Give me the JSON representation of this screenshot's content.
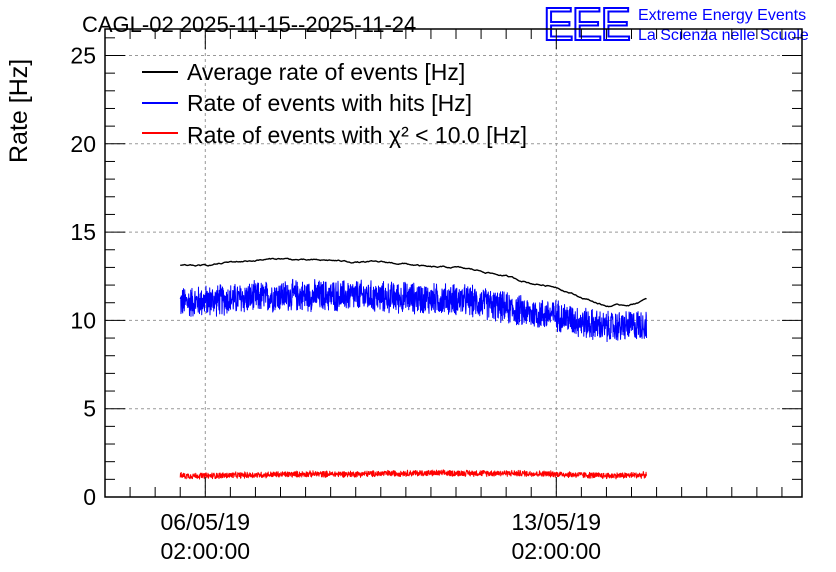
{
  "header": {
    "title": "CAGL-02 2025-11-15--2025-11-24",
    "logo_letters": "EEE",
    "logo_line1": "Extreme Energy Events",
    "logo_line2": "La Scienza nelle Scuole"
  },
  "colors": {
    "average": "#000000",
    "hits": "#0000ff",
    "chi2": "#ff0000",
    "grid": "#999999",
    "logo": "#0000ff"
  },
  "chart_data": {
    "type": "line",
    "title": "CAGL-02 2025-11-15--2025-11-24",
    "ylabel": "Rate [Hz]",
    "xlabel": "",
    "ylim": [
      0,
      26.5
    ],
    "yticks": [
      0,
      5,
      10,
      15,
      20,
      25
    ],
    "xlim_days": [
      -2.0,
      11.9
    ],
    "grid": true,
    "legend_position": "top-left",
    "x_ticks": [
      {
        "day": 0,
        "line1": "06/05/19",
        "line2": "02:00:00"
      },
      {
        "day": 7,
        "line1": "13/05/19",
        "line2": "02:00:00"
      }
    ],
    "series": [
      {
        "name": "Average rate of events [Hz]",
        "color": "#000000",
        "noise": 0.06,
        "x": [
          -0.5,
          0.0,
          0.5,
          1.0,
          1.5,
          2.0,
          2.5,
          3.0,
          3.5,
          4.0,
          4.5,
          5.0,
          5.5,
          6.0,
          6.5,
          7.0,
          7.5,
          8.0,
          8.5,
          8.8
        ],
        "y": [
          13.1,
          13.1,
          13.3,
          13.4,
          13.5,
          13.4,
          13.4,
          13.3,
          13.3,
          13.2,
          13.0,
          13.0,
          12.8,
          12.5,
          12.1,
          11.9,
          11.3,
          10.8,
          10.9,
          11.2
        ]
      },
      {
        "name": "Rate of events with hits [Hz]",
        "color": "#0000ff",
        "noise": 1.0,
        "x": [
          -0.5,
          0.0,
          0.5,
          1.0,
          1.5,
          2.0,
          2.5,
          3.0,
          3.5,
          4.0,
          4.5,
          5.0,
          5.5,
          6.0,
          6.5,
          7.0,
          7.5,
          8.0,
          8.5,
          8.8
        ],
        "y": [
          11.0,
          11.1,
          11.2,
          11.3,
          11.4,
          11.4,
          11.4,
          11.4,
          11.3,
          11.3,
          11.2,
          11.2,
          11.0,
          10.7,
          10.4,
          10.3,
          9.9,
          9.6,
          9.7,
          9.8
        ]
      },
      {
        "name": "Rate of events with χ² < 10.0 [Hz]",
        "color": "#ff0000",
        "noise": 0.2,
        "x": [
          -0.5,
          0.0,
          1.0,
          2.0,
          3.0,
          4.0,
          5.0,
          6.0,
          7.0,
          8.0,
          8.8
        ],
        "y": [
          1.2,
          1.2,
          1.25,
          1.3,
          1.3,
          1.35,
          1.35,
          1.35,
          1.3,
          1.2,
          1.25
        ]
      }
    ]
  }
}
